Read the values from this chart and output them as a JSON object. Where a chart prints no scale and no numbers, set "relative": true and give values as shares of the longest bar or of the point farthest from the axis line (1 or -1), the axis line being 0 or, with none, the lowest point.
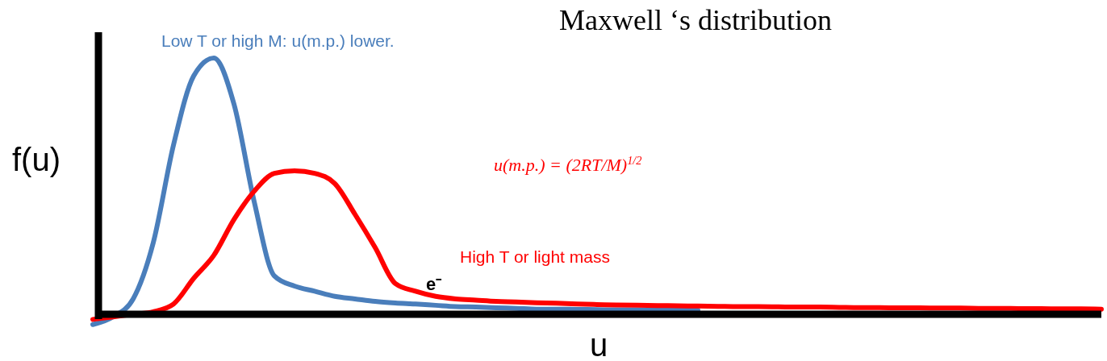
{
  "chart_data": {
    "type": "line",
    "title": "Maxwell ‘s distribution",
    "xlabel": "u",
    "ylabel": "f(u)",
    "relative": true,
    "legend": false,
    "line_style": "solid",
    "marker": "none",
    "categories": [
      null,
      null,
      null,
      null,
      null,
      null,
      null,
      null,
      null,
      null,
      null,
      null,
      null,
      null,
      null,
      null,
      null,
      null,
      null,
      null,
      null,
      null,
      null,
      null,
      null,
      null,
      null,
      null,
      null,
      null,
      null,
      null,
      null,
      null,
      null,
      null,
      null,
      null,
      null,
      null,
      null,
      null,
      null,
      null,
      null,
      null,
      null,
      null,
      null,
      null,
      null
    ],
    "series": [
      {
        "name": "Low T or high M: u(m.p.) lower.",
        "color": "#4a7ebb",
        "values": [
          -0.04,
          -0.01,
          0.06,
          0.28,
          0.66,
          0.93,
          1,
          0.82,
          0.44,
          0.15,
          0.11,
          0.09,
          0.07,
          0.06,
          0.05,
          0.044,
          0.04,
          0.035,
          0.03,
          0.028,
          0.025,
          0.023,
          0.02,
          0.02,
          0.019,
          0.018,
          0.017,
          0.017,
          0.016,
          0.016,
          0.016,
          null,
          null,
          null,
          null,
          null,
          null,
          null,
          null,
          null,
          null,
          null,
          null,
          null,
          null,
          null,
          null,
          null,
          null,
          null,
          null
        ]
      },
      {
        "name": "High T or light mass",
        "color": "#ff0000",
        "values": [
          -0.02,
          -0.01,
          0,
          0.01,
          0.04,
          0.14,
          0.23,
          0.37,
          0.48,
          0.55,
          0.56,
          0.55,
          0.51,
          0.39,
          0.26,
          0.12,
          0.09,
          0.07,
          0.06,
          0.055,
          0.05,
          0.048,
          0.045,
          0.043,
          0.04,
          0.038,
          0.036,
          0.035,
          0.034,
          0.033,
          0.032,
          0.031,
          0.03,
          0.03,
          0.029,
          0.028,
          0.028,
          0.027,
          0.026,
          0.026,
          0.025,
          0.025,
          0.024,
          0.024,
          0.023,
          0.023,
          0.022,
          0.022,
          0.021,
          0.021,
          0.02
        ]
      }
    ],
    "annotations": [
      "e⁻",
      "u(m.p.) = (2RT/M)$^{1/2}$"
    ]
  }
}
